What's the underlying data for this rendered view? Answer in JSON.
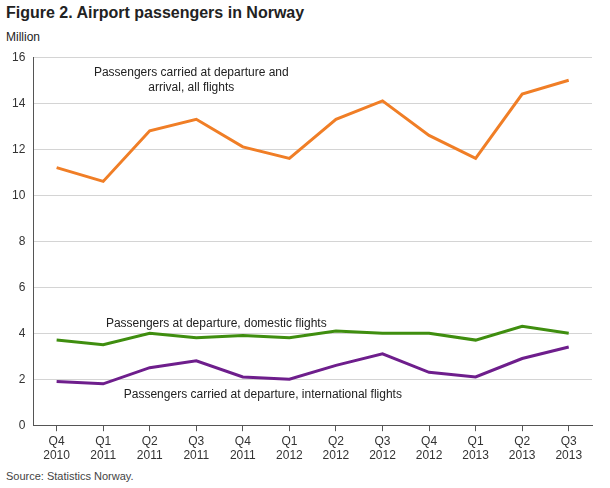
{
  "chart_data": {
    "type": "line",
    "title": "Figure 2. Airport passengers in Norway",
    "ylabel": "Million",
    "source": "Source: Statistics Norway.",
    "categories": [
      "Q4 2010",
      "Q1 2011",
      "Q2 2011",
      "Q3 2011",
      "Q4 2011",
      "Q1 2012",
      "Q2 2012",
      "Q3 2012",
      "Q4 2012",
      "Q1 2013",
      "Q2 2013",
      "Q3 2013"
    ],
    "series": [
      {
        "name": "Passengers carried at departure and arrival, all flights",
        "color": "#f07e26",
        "values": [
          11.2,
          10.6,
          12.8,
          13.3,
          12.1,
          11.6,
          13.3,
          14.1,
          12.6,
          11.6,
          14.4,
          15.0
        ]
      },
      {
        "name": "Passengers at departure, domestic flights",
        "color": "#3f8e0f",
        "values": [
          3.7,
          3.5,
          4.0,
          3.8,
          3.9,
          3.8,
          4.1,
          4.0,
          4.0,
          3.7,
          4.3,
          4.0
        ]
      },
      {
        "name": "Passengers carried at departure, international flights",
        "color": "#6e1e8c",
        "values": [
          1.9,
          1.8,
          2.5,
          2.8,
          2.1,
          2.0,
          2.6,
          3.1,
          2.3,
          2.1,
          2.9,
          3.4
        ]
      }
    ],
    "ylim": [
      0,
      16
    ],
    "yticks": [
      0,
      2,
      4,
      6,
      8,
      10,
      12,
      14,
      16
    ],
    "grid": true
  }
}
